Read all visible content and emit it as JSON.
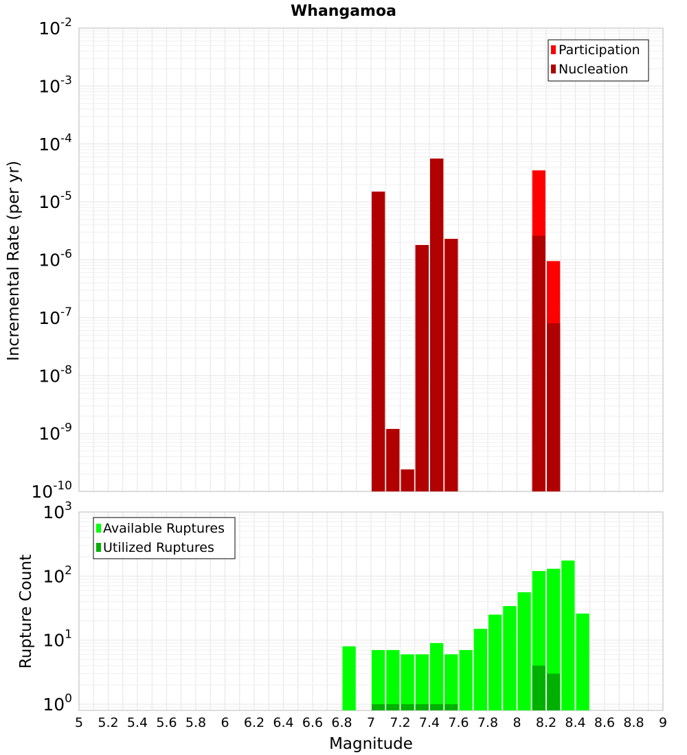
{
  "chart_data": [
    {
      "type": "bar",
      "title": "Whangamoa",
      "ylabel": "Incremental Rate (per yr)",
      "xlabel": "",
      "x_range": [
        5,
        9
      ],
      "bar_width": 0.1,
      "y_scale": "log",
      "ylim": [
        1e-10,
        0.01
      ],
      "y_tick_labels": [
        {
          "base": "10",
          "exp": "-2"
        },
        {
          "base": "10",
          "exp": "-3"
        },
        {
          "base": "10",
          "exp": "-4"
        },
        {
          "base": "10",
          "exp": "-5"
        },
        {
          "base": "10",
          "exp": "-6"
        },
        {
          "base": "10",
          "exp": "-7"
        },
        {
          "base": "10",
          "exp": "-8"
        },
        {
          "base": "10",
          "exp": "-9"
        },
        {
          "base": "10",
          "exp": "-10"
        }
      ],
      "legend_position": "top-right",
      "series": [
        {
          "name": "Participation",
          "color": "#ff0000",
          "points": [
            {
              "x": 7.05,
              "y": 1.5e-05
            },
            {
              "x": 7.15,
              "y": 1.2e-09
            },
            {
              "x": 7.25,
              "y": 2.4e-10
            },
            {
              "x": 7.35,
              "y": 1.8e-06
            },
            {
              "x": 7.45,
              "y": 5.6e-05
            },
            {
              "x": 7.55,
              "y": 2.3e-06
            },
            {
              "x": 8.15,
              "y": 3.5e-05
            },
            {
              "x": 8.25,
              "y": 9.5e-07
            }
          ]
        },
        {
          "name": "Nucleation",
          "color": "#b00000",
          "points": [
            {
              "x": 7.05,
              "y": 1.5e-05
            },
            {
              "x": 7.15,
              "y": 1.2e-09
            },
            {
              "x": 7.25,
              "y": 2.4e-10
            },
            {
              "x": 7.35,
              "y": 1.8e-06
            },
            {
              "x": 7.45,
              "y": 5.6e-05
            },
            {
              "x": 7.55,
              "y": 2.3e-06
            },
            {
              "x": 8.15,
              "y": 2.6e-06
            },
            {
              "x": 8.25,
              "y": 8e-08
            }
          ]
        }
      ]
    },
    {
      "type": "bar",
      "title": "",
      "ylabel": "Rupture Count",
      "xlabel": "Magnitude",
      "x_range": [
        5,
        9
      ],
      "bar_width": 0.1,
      "y_scale": "log",
      "ylim": [
        0.8,
        1000
      ],
      "y_tick_labels": [
        {
          "base": "10",
          "exp": "3"
        },
        {
          "base": "10",
          "exp": "2"
        },
        {
          "base": "10",
          "exp": "1"
        },
        {
          "base": "10",
          "exp": "0"
        }
      ],
      "x_ticks": [
        "5",
        "5.2",
        "5.4",
        "5.6",
        "5.8",
        "6",
        "6.2",
        "6.4",
        "6.6",
        "6.8",
        "7",
        "7.2",
        "7.4",
        "7.6",
        "7.8",
        "8",
        "8.2",
        "8.4",
        "8.6",
        "8.8",
        "9"
      ],
      "legend_position": "top-left",
      "series": [
        {
          "name": "Available Ruptures",
          "color": "#00ff00",
          "points": [
            {
              "x": 6.85,
              "y": 8
            },
            {
              "x": 7.05,
              "y": 7
            },
            {
              "x": 7.15,
              "y": 7
            },
            {
              "x": 7.25,
              "y": 6
            },
            {
              "x": 7.35,
              "y": 6
            },
            {
              "x": 7.45,
              "y": 9
            },
            {
              "x": 7.55,
              "y": 6
            },
            {
              "x": 7.65,
              "y": 7
            },
            {
              "x": 7.75,
              "y": 15
            },
            {
              "x": 7.85,
              "y": 25
            },
            {
              "x": 7.95,
              "y": 34
            },
            {
              "x": 8.05,
              "y": 56
            },
            {
              "x": 8.15,
              "y": 120
            },
            {
              "x": 8.25,
              "y": 130
            },
            {
              "x": 8.35,
              "y": 175
            },
            {
              "x": 8.45,
              "y": 26
            }
          ]
        },
        {
          "name": "Utilized Ruptures",
          "color": "#00b000",
          "points": [
            {
              "x": 7.05,
              "y": 1
            },
            {
              "x": 7.15,
              "y": 1
            },
            {
              "x": 7.25,
              "y": 1
            },
            {
              "x": 7.35,
              "y": 1
            },
            {
              "x": 7.45,
              "y": 1
            },
            {
              "x": 7.55,
              "y": 1
            },
            {
              "x": 8.15,
              "y": 4
            },
            {
              "x": 8.25,
              "y": 3
            }
          ]
        }
      ]
    }
  ]
}
